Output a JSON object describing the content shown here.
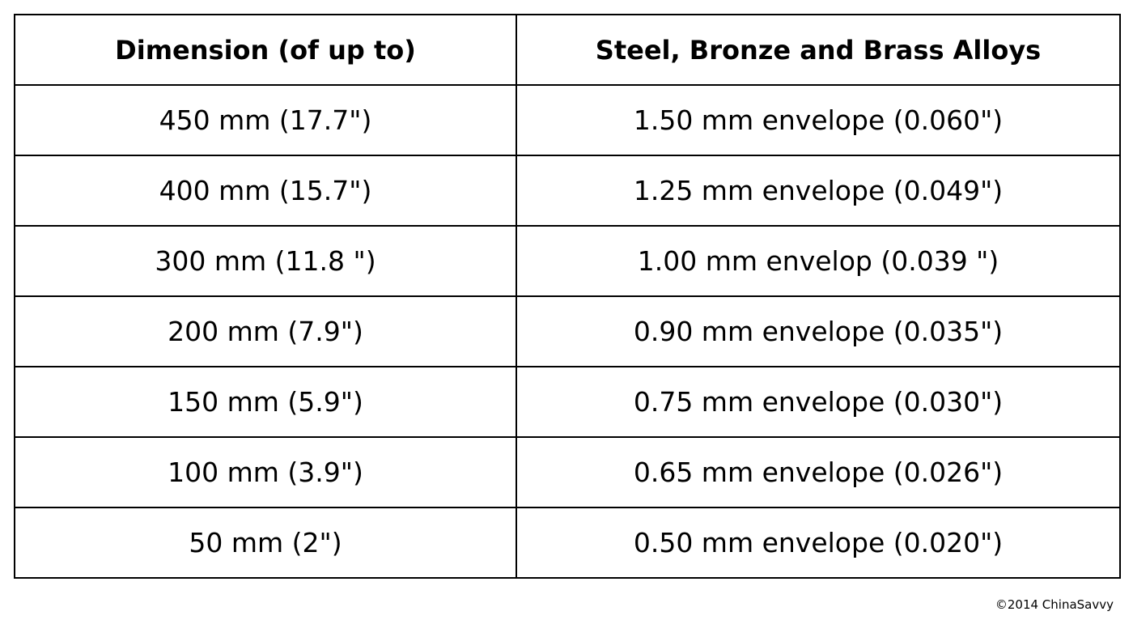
{
  "table": {
    "headers": [
      "Dimension (of up to)",
      "Steel, Bronze and Brass Alloys"
    ],
    "rows": [
      [
        "450 mm (17.7\")",
        "1.50 mm envelope (0.060\")"
      ],
      [
        "400 mm (15.7\")",
        "1.25 mm envelope (0.049\")"
      ],
      [
        "300 mm (11.8 \")",
        "1.00 mm envelop (0.039 \")"
      ],
      [
        "200 mm (7.9\")",
        "0.90 mm envelope (0.035\")"
      ],
      [
        "150 mm (5.9\")",
        "0.75 mm envelope (0.030\")"
      ],
      [
        "100 mm (3.9\")",
        "0.65 mm envelope (0.026\")"
      ],
      [
        "50 mm (2\")",
        "0.50 mm envelope (0.020\")"
      ]
    ]
  },
  "footer": {
    "copyright": "©2014 ChinaSavvy"
  }
}
